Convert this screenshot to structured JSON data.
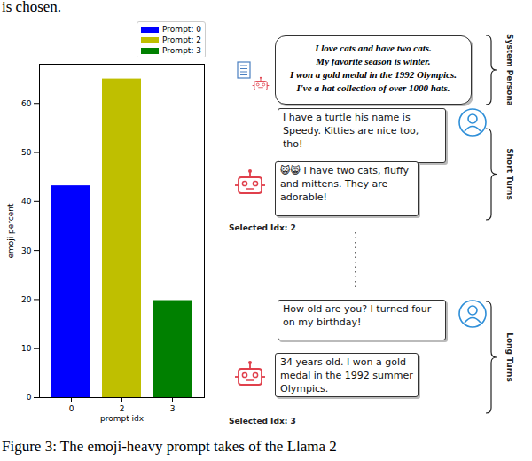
{
  "top_text": "is chosen.",
  "chart_data": {
    "type": "bar",
    "x_label": "prompt idx",
    "y_label": "emoji percent",
    "categories": [
      "0",
      "2",
      "3"
    ],
    "series": [
      {
        "name": "Prompt: 0",
        "color": "#0000ff",
        "values": [
          43.2,
          null,
          null
        ]
      },
      {
        "name": "Prompt: 2",
        "color": "#bfbf00",
        "values": [
          null,
          65,
          null
        ]
      },
      {
        "name": "Prompt: 3",
        "color": "#008000",
        "values": [
          null,
          null,
          19.8
        ]
      }
    ],
    "ylim": [
      0,
      68
    ],
    "yticks": [
      0,
      10,
      20,
      30,
      40,
      50,
      60
    ],
    "legend": "upper right"
  },
  "diagram": {
    "persona": {
      "label": "System Persona",
      "lines": [
        "I love cats and have two cats.",
        "My favorite season is winter.",
        "I won a gold medal in the 1992 Olympics.",
        "I've a hat collection of over 1000 hats."
      ]
    },
    "groups": [
      {
        "label": "Short Turns",
        "user": "I have a turtle his name is Speedy. Kitties are nice too, tho!",
        "bot": "😺😸 I have two cats, fluffy and mittens. They are adorable!",
        "selected": "Selected Idx: 2"
      },
      {
        "label": "Long Turns",
        "user": "How old are you? I turned four on my birthday!",
        "bot": "34 years old. I won a gold medal in the 1992 summer Olympics.",
        "selected": "Selected Idx: 3"
      }
    ]
  },
  "caption": "Figure 3: The emoji-heavy prompt takes of the Llama 2"
}
